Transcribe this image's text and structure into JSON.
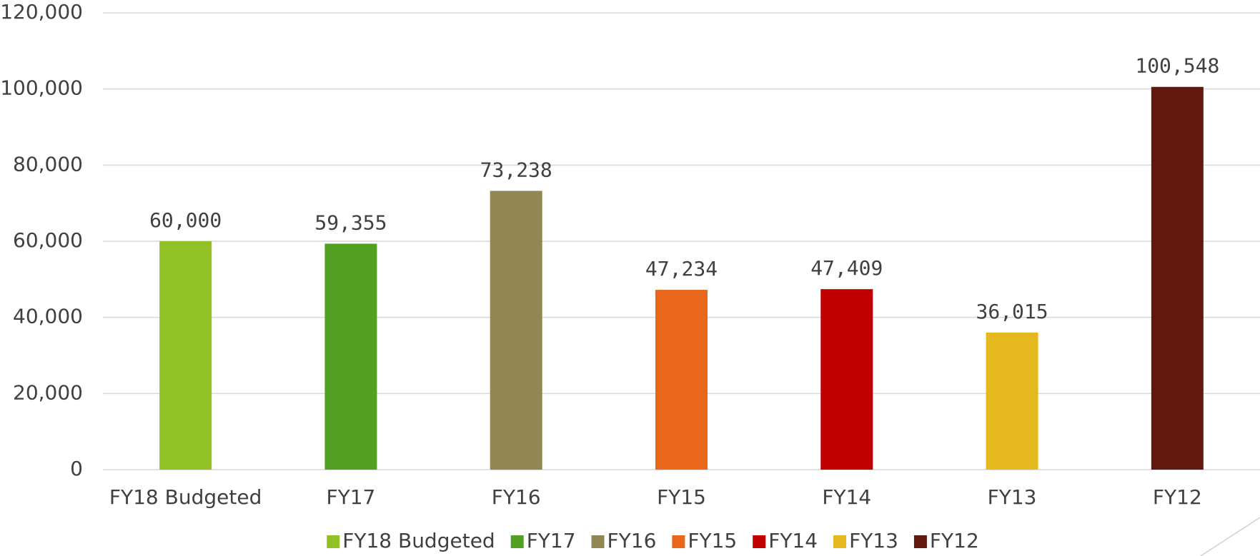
{
  "chart_data": {
    "type": "bar",
    "categories": [
      "FY18 Budgeted",
      "FY17",
      "FY16",
      "FY15",
      "FY14",
      "FY13",
      "FY12"
    ],
    "values": [
      60000,
      59355,
      73238,
      47234,
      47409,
      36015,
      100548
    ],
    "value_labels": [
      "60,000",
      "59,355",
      "73,238",
      "47,234",
      "47,409",
      "36,015",
      "100,548"
    ],
    "colors": [
      "#92c027",
      "#54a023",
      "#918755",
      "#e8671b",
      "#c00000",
      "#e6b820",
      "#62170f"
    ],
    "ylim": [
      0,
      120000
    ],
    "yticks": [
      0,
      {
        "value": 20000,
        "label": "20,000"
      },
      {
        "value": 40000,
        "label": "40,000"
      },
      {
        "value": 60000,
        "label": "60,000"
      },
      {
        "value": 80000,
        "label": "80,000"
      },
      {
        "value": 100000,
        "label": "100,000"
      },
      {
        "value": 120000,
        "label": "120,000"
      }
    ],
    "grid": true,
    "legend": "bottom"
  }
}
